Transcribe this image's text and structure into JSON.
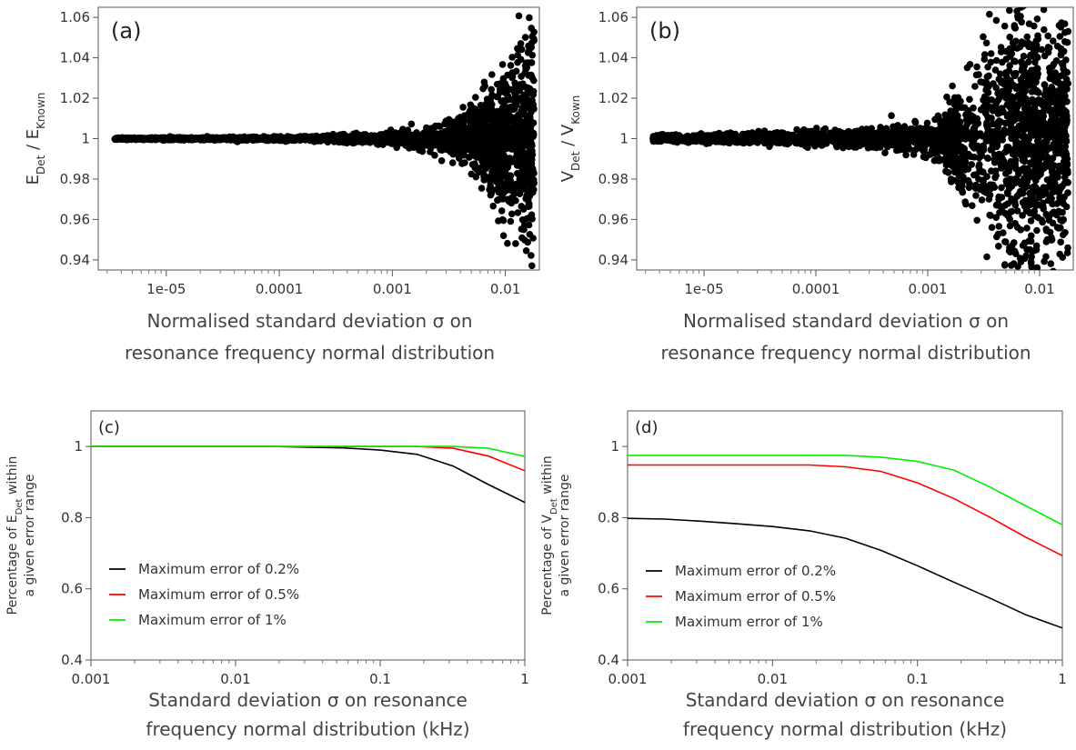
{
  "chart_data": [
    {
      "type": "scatter",
      "panel_label": "(a)",
      "xlabel_line1": "Normalised standard deviation σ on",
      "xlabel_line2": "resonance frequency normal distribution",
      "ylabel_main": "E",
      "ylabel_sub": "Det",
      "ylabel_sep": " / E",
      "ylabel_sub2": "Known",
      "x_scale": "log",
      "xlim": [
        2.5e-06,
        0.02
      ],
      "ylim": [
        0.935,
        1.065
      ],
      "xticks": [
        {
          "v": 1e-05,
          "label": "1e-05"
        },
        {
          "v": 0.0001,
          "label": "0.0001"
        },
        {
          "v": 0.001,
          "label": "0.001"
        },
        {
          "v": 0.01,
          "label": "0.01"
        }
      ],
      "yticks": [
        {
          "v": 0.94,
          "label": "0.94"
        },
        {
          "v": 0.96,
          "label": "0.96"
        },
        {
          "v": 0.98,
          "label": "0.98"
        },
        {
          "v": 1,
          "label": "1"
        },
        {
          "v": 1.02,
          "label": "1.02"
        },
        {
          "v": 1.04,
          "label": "1.04"
        },
        {
          "v": 1.06,
          "label": "1.06"
        }
      ],
      "series": [
        {
          "x": [
            3.5e-06,
            5e-06,
            8e-06,
            1.2e-05,
            2e-05,
            3e-05,
            5e-05,
            8e-05,
            0.00012,
            0.0002,
            0.0003,
            0.0005,
            0.0008,
            0.0012,
            0.002,
            0.003,
            0.004,
            0.005,
            0.006,
            0.007,
            0.008,
            0.009,
            0.01,
            0.012,
            0.014,
            0.016,
            0.018
          ],
          "spread": [
            0.0005,
            0.0005,
            0.0006,
            0.0006,
            0.0007,
            0.0008,
            0.0009,
            0.001,
            0.0012,
            0.0015,
            0.002,
            0.0025,
            0.003,
            0.004,
            0.006,
            0.01,
            0.012,
            0.015,
            0.02,
            0.025,
            0.03,
            0.035,
            0.04,
            0.045,
            0.05,
            0.055,
            0.06
          ]
        }
      ]
    },
    {
      "type": "scatter",
      "panel_label": "(b)",
      "xlabel_line1": "Normalised standard deviation σ on",
      "xlabel_line2": "resonance frequency normal distribution",
      "ylabel_main": "V",
      "ylabel_sub": "Det",
      "ylabel_sep": " / V",
      "ylabel_sub2": "Kown",
      "x_scale": "log",
      "xlim": [
        2.5e-06,
        0.02
      ],
      "ylim": [
        0.935,
        1.065
      ],
      "xticks": [
        {
          "v": 1e-05,
          "label": "1e-05"
        },
        {
          "v": 0.0001,
          "label": "0.0001"
        },
        {
          "v": 0.001,
          "label": "0.001"
        },
        {
          "v": 0.01,
          "label": "0.01"
        }
      ],
      "yticks": [
        {
          "v": 0.94,
          "label": "0.94"
        },
        {
          "v": 0.96,
          "label": "0.96"
        },
        {
          "v": 0.98,
          "label": "0.98"
        },
        {
          "v": 1,
          "label": "1"
        },
        {
          "v": 1.02,
          "label": "1.02"
        },
        {
          "v": 1.04,
          "label": "1.04"
        },
        {
          "v": 1.06,
          "label": "1.06"
        }
      ],
      "series": [
        {
          "x": [
            3.5e-06,
            5e-06,
            8e-06,
            1.2e-05,
            2e-05,
            3e-05,
            5e-05,
            8e-05,
            0.00012,
            0.0002,
            0.0003,
            0.0005,
            0.0008,
            0.0012,
            0.0016,
            0.002,
            0.003,
            0.004,
            0.005,
            0.006,
            0.007,
            0.008,
            0.009,
            0.01,
            0.012,
            0.014,
            0.016,
            0.018
          ],
          "spread": [
            0.002,
            0.002,
            0.0022,
            0.0024,
            0.0026,
            0.003,
            0.0033,
            0.0036,
            0.004,
            0.0045,
            0.005,
            0.006,
            0.008,
            0.012,
            0.02,
            0.03,
            0.045,
            0.055,
            0.065,
            0.07,
            0.07,
            0.07,
            0.07,
            0.065,
            0.065,
            0.06,
            0.06,
            0.06
          ]
        }
      ]
    },
    {
      "type": "line",
      "panel_label": "(c)",
      "xlabel_line1": "Standard deviation σ on resonance",
      "xlabel_line2": "frequency normal distribution (kHz)",
      "ylabel_line1_pre": "Percentage of E",
      "ylabel_line1_sub": "Det",
      "ylabel_line1_post": " within",
      "ylabel_line2": "a given error range",
      "x_scale": "log",
      "xlim": [
        0.001,
        1
      ],
      "ylim": [
        0.4,
        1.1
      ],
      "xticks": [
        {
          "v": 0.001,
          "label": "0.001"
        },
        {
          "v": 0.01,
          "label": "0.01"
        },
        {
          "v": 0.1,
          "label": "0.1"
        },
        {
          "v": 1,
          "label": "1"
        }
      ],
      "yticks": [
        {
          "v": 0.4,
          "label": "0.4"
        },
        {
          "v": 0.6,
          "label": "0.6"
        },
        {
          "v": 0.8,
          "label": "0.8"
        },
        {
          "v": 1,
          "label": "1"
        }
      ],
      "series": [
        {
          "name": "Maximum error of 0.2%",
          "color": "#000000",
          "x": [
            0.001,
            0.0018,
            0.0032,
            0.0056,
            0.01,
            0.018,
            0.032,
            0.056,
            0.1,
            0.18,
            0.32,
            0.56,
            1.0
          ],
          "y": [
            1.0,
            1.0,
            1.0,
            1.0,
            1.0,
            1.0,
            0.998,
            0.996,
            0.99,
            0.978,
            0.945,
            0.893,
            0.843
          ]
        },
        {
          "name": "Maximum error of 0.5%",
          "color": "#ff0000",
          "x": [
            0.001,
            0.0018,
            0.0032,
            0.0056,
            0.01,
            0.018,
            0.032,
            0.056,
            0.1,
            0.18,
            0.32,
            0.56,
            1.0
          ],
          "y": [
            1.0,
            1.0,
            1.0,
            1.0,
            1.0,
            1.0,
            1.0,
            1.0,
            1.0,
            1.0,
            0.995,
            0.973,
            0.932
          ]
        },
        {
          "name": "Maximum error of 1%",
          "color": "#00ee00",
          "x": [
            0.001,
            0.0018,
            0.0032,
            0.0056,
            0.01,
            0.018,
            0.032,
            0.056,
            0.1,
            0.18,
            0.32,
            0.56,
            1.0
          ],
          "y": [
            1.0,
            1.0,
            1.0,
            1.0,
            1.0,
            1.0,
            1.0,
            1.0,
            1.0,
            1.0,
            1.0,
            0.995,
            0.972
          ]
        }
      ]
    },
    {
      "type": "line",
      "panel_label": "(d)",
      "xlabel_line1": "Standard deviation σ on resonance",
      "xlabel_line2": "frequency normal distribution (kHz)",
      "ylabel_line1_pre": "Percentage of V",
      "ylabel_line1_sub": "Det",
      "ylabel_line1_post": " within",
      "ylabel_line2": "a given error range",
      "x_scale": "log",
      "xlim": [
        0.001,
        1
      ],
      "ylim": [
        0.4,
        1.1
      ],
      "xticks": [
        {
          "v": 0.001,
          "label": "0.001"
        },
        {
          "v": 0.01,
          "label": "0.01"
        },
        {
          "v": 0.1,
          "label": "0.1"
        },
        {
          "v": 1,
          "label": "1"
        }
      ],
      "yticks": [
        {
          "v": 0.4,
          "label": "0.4"
        },
        {
          "v": 0.6,
          "label": "0.6"
        },
        {
          "v": 0.8,
          "label": "0.8"
        },
        {
          "v": 1,
          "label": "1"
        }
      ],
      "series": [
        {
          "name": "Maximum error of 0.2%",
          "color": "#000000",
          "x": [
            0.001,
            0.0018,
            0.0032,
            0.0056,
            0.01,
            0.018,
            0.032,
            0.056,
            0.1,
            0.18,
            0.32,
            0.56,
            1.0
          ],
          "y": [
            0.798,
            0.796,
            0.79,
            0.783,
            0.775,
            0.763,
            0.742,
            0.708,
            0.665,
            0.618,
            0.573,
            0.527,
            0.49
          ]
        },
        {
          "name": "Maximum error of 0.5%",
          "color": "#ff0000",
          "x": [
            0.001,
            0.0018,
            0.0032,
            0.0056,
            0.01,
            0.018,
            0.032,
            0.056,
            0.1,
            0.18,
            0.32,
            0.56,
            1.0
          ],
          "y": [
            0.948,
            0.948,
            0.948,
            0.948,
            0.948,
            0.948,
            0.943,
            0.93,
            0.898,
            0.853,
            0.8,
            0.745,
            0.693
          ]
        },
        {
          "name": "Maximum error of 1%",
          "color": "#00ee00",
          "x": [
            0.001,
            0.0018,
            0.0032,
            0.0056,
            0.01,
            0.018,
            0.032,
            0.056,
            0.1,
            0.18,
            0.32,
            0.56,
            1.0
          ],
          "y": [
            0.975,
            0.975,
            0.975,
            0.975,
            0.975,
            0.975,
            0.975,
            0.97,
            0.958,
            0.933,
            0.885,
            0.833,
            0.78
          ]
        }
      ]
    }
  ]
}
